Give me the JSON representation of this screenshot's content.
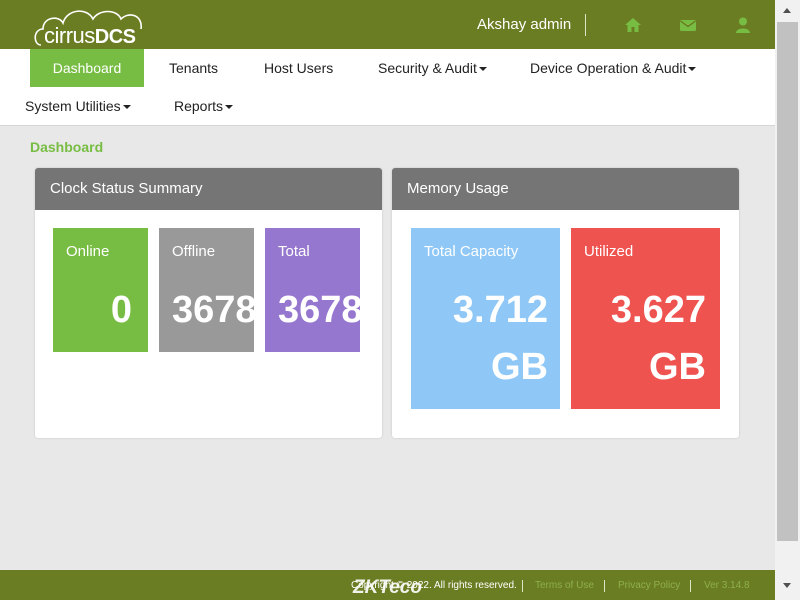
{
  "header": {
    "logo_light": "cirrus",
    "logo_bold": "DCS",
    "user": "Akshay admin",
    "icons": [
      "home-icon",
      "envelope-icon",
      "user-icon"
    ]
  },
  "nav": {
    "items": [
      {
        "label": "Dashboard",
        "active": true
      },
      {
        "label": "Tenants"
      },
      {
        "label": "Host Users"
      },
      {
        "label": "Security & Audit",
        "dropdown": true
      },
      {
        "label": "Device Operation & Audit",
        "dropdown": true
      },
      {
        "label": "System Utilities",
        "dropdown": true
      },
      {
        "label": "Reports",
        "dropdown": true
      }
    ]
  },
  "page": {
    "title": "Dashboard"
  },
  "clock_status": {
    "title": "Clock Status Summary",
    "online": {
      "label": "Online",
      "value": "0"
    },
    "offline": {
      "label": "Offline",
      "value": "3678"
    },
    "total": {
      "label": "Total",
      "value": "3678"
    }
  },
  "memory": {
    "title": "Memory Usage",
    "total_capacity": {
      "label": "Total Capacity",
      "value": "3.712",
      "unit": "GB"
    },
    "utilized": {
      "label": "Utilized",
      "value": "3.627",
      "unit": "GB"
    }
  },
  "footer": {
    "logo": "ZKTeco",
    "copyright": "Copyright © 2022. All rights reserved.",
    "terms": "Terms of Use",
    "privacy": "Privacy Policy",
    "version": "Ver 3.14.8"
  },
  "colors": {
    "header_bg": "#6b7d23",
    "accent_green": "#78bd43",
    "tile_offline": "#999999",
    "tile_total": "#9677cf",
    "tile_capacity": "#8fc8f6",
    "tile_utilized": "#ef5350",
    "panel_head": "#757575"
  }
}
